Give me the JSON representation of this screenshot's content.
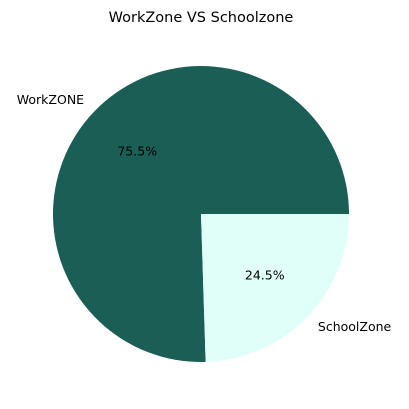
{
  "chart_data": {
    "type": "pie",
    "title": "WorkZone VS Schoolzone",
    "categories": [
      "WorkZONE",
      "SchoolZone"
    ],
    "values": [
      75.5,
      24.5
    ],
    "percent_labels": [
      "75.5%",
      "24.5%"
    ],
    "colors": [
      "#1a5e55",
      "#e0fff9"
    ],
    "start_angle_deg": 0,
    "direction": "counterclockwise",
    "legend": "none"
  }
}
